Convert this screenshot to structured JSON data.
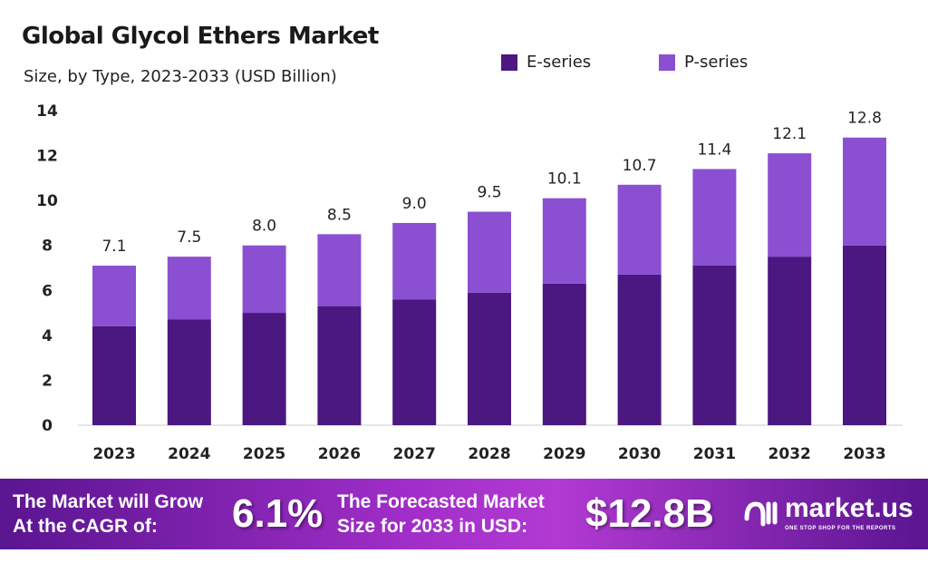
{
  "chart_data": {
    "type": "bar",
    "stacked": true,
    "title": "Global Glycol Ethers Market",
    "subtitle": "Size, by Type, 2023-2033 (USD Billion)",
    "categories": [
      "2023",
      "2024",
      "2025",
      "2026",
      "2027",
      "2028",
      "2029",
      "2030",
      "2031",
      "2032",
      "2033"
    ],
    "series": [
      {
        "name": "E-series",
        "color": "#4b1780",
        "values": [
          4.4,
          4.7,
          5.0,
          5.3,
          5.6,
          5.9,
          6.3,
          6.7,
          7.1,
          7.5,
          8.0
        ]
      },
      {
        "name": "P-series",
        "color": "#8b50d1",
        "values": [
          2.7,
          2.8,
          3.0,
          3.2,
          3.4,
          3.6,
          3.8,
          4.0,
          4.3,
          4.6,
          4.8
        ]
      }
    ],
    "totals": [
      "7.1",
      "7.5",
      "8.0",
      "8.5",
      "9.0",
      "9.5",
      "10.1",
      "10.7",
      "11.4",
      "12.1",
      "12.8"
    ],
    "yticks": [
      0,
      2,
      4,
      6,
      8,
      10,
      12,
      14
    ],
    "ylim": [
      0,
      14
    ],
    "grid": false,
    "legend": "top-right"
  },
  "footer": {
    "cagr_label_1": "The Market will Grow",
    "cagr_label_2": "At the CAGR of:",
    "cagr_value": "6.1%",
    "forecast_label_1": "The Forecasted Market",
    "forecast_label_2": "Size for 2033 in USD:",
    "forecast_value": "$12.8B",
    "logo": "market.us",
    "logo_tagline": "ONE STOP SHOP FOR THE REPORTS"
  }
}
